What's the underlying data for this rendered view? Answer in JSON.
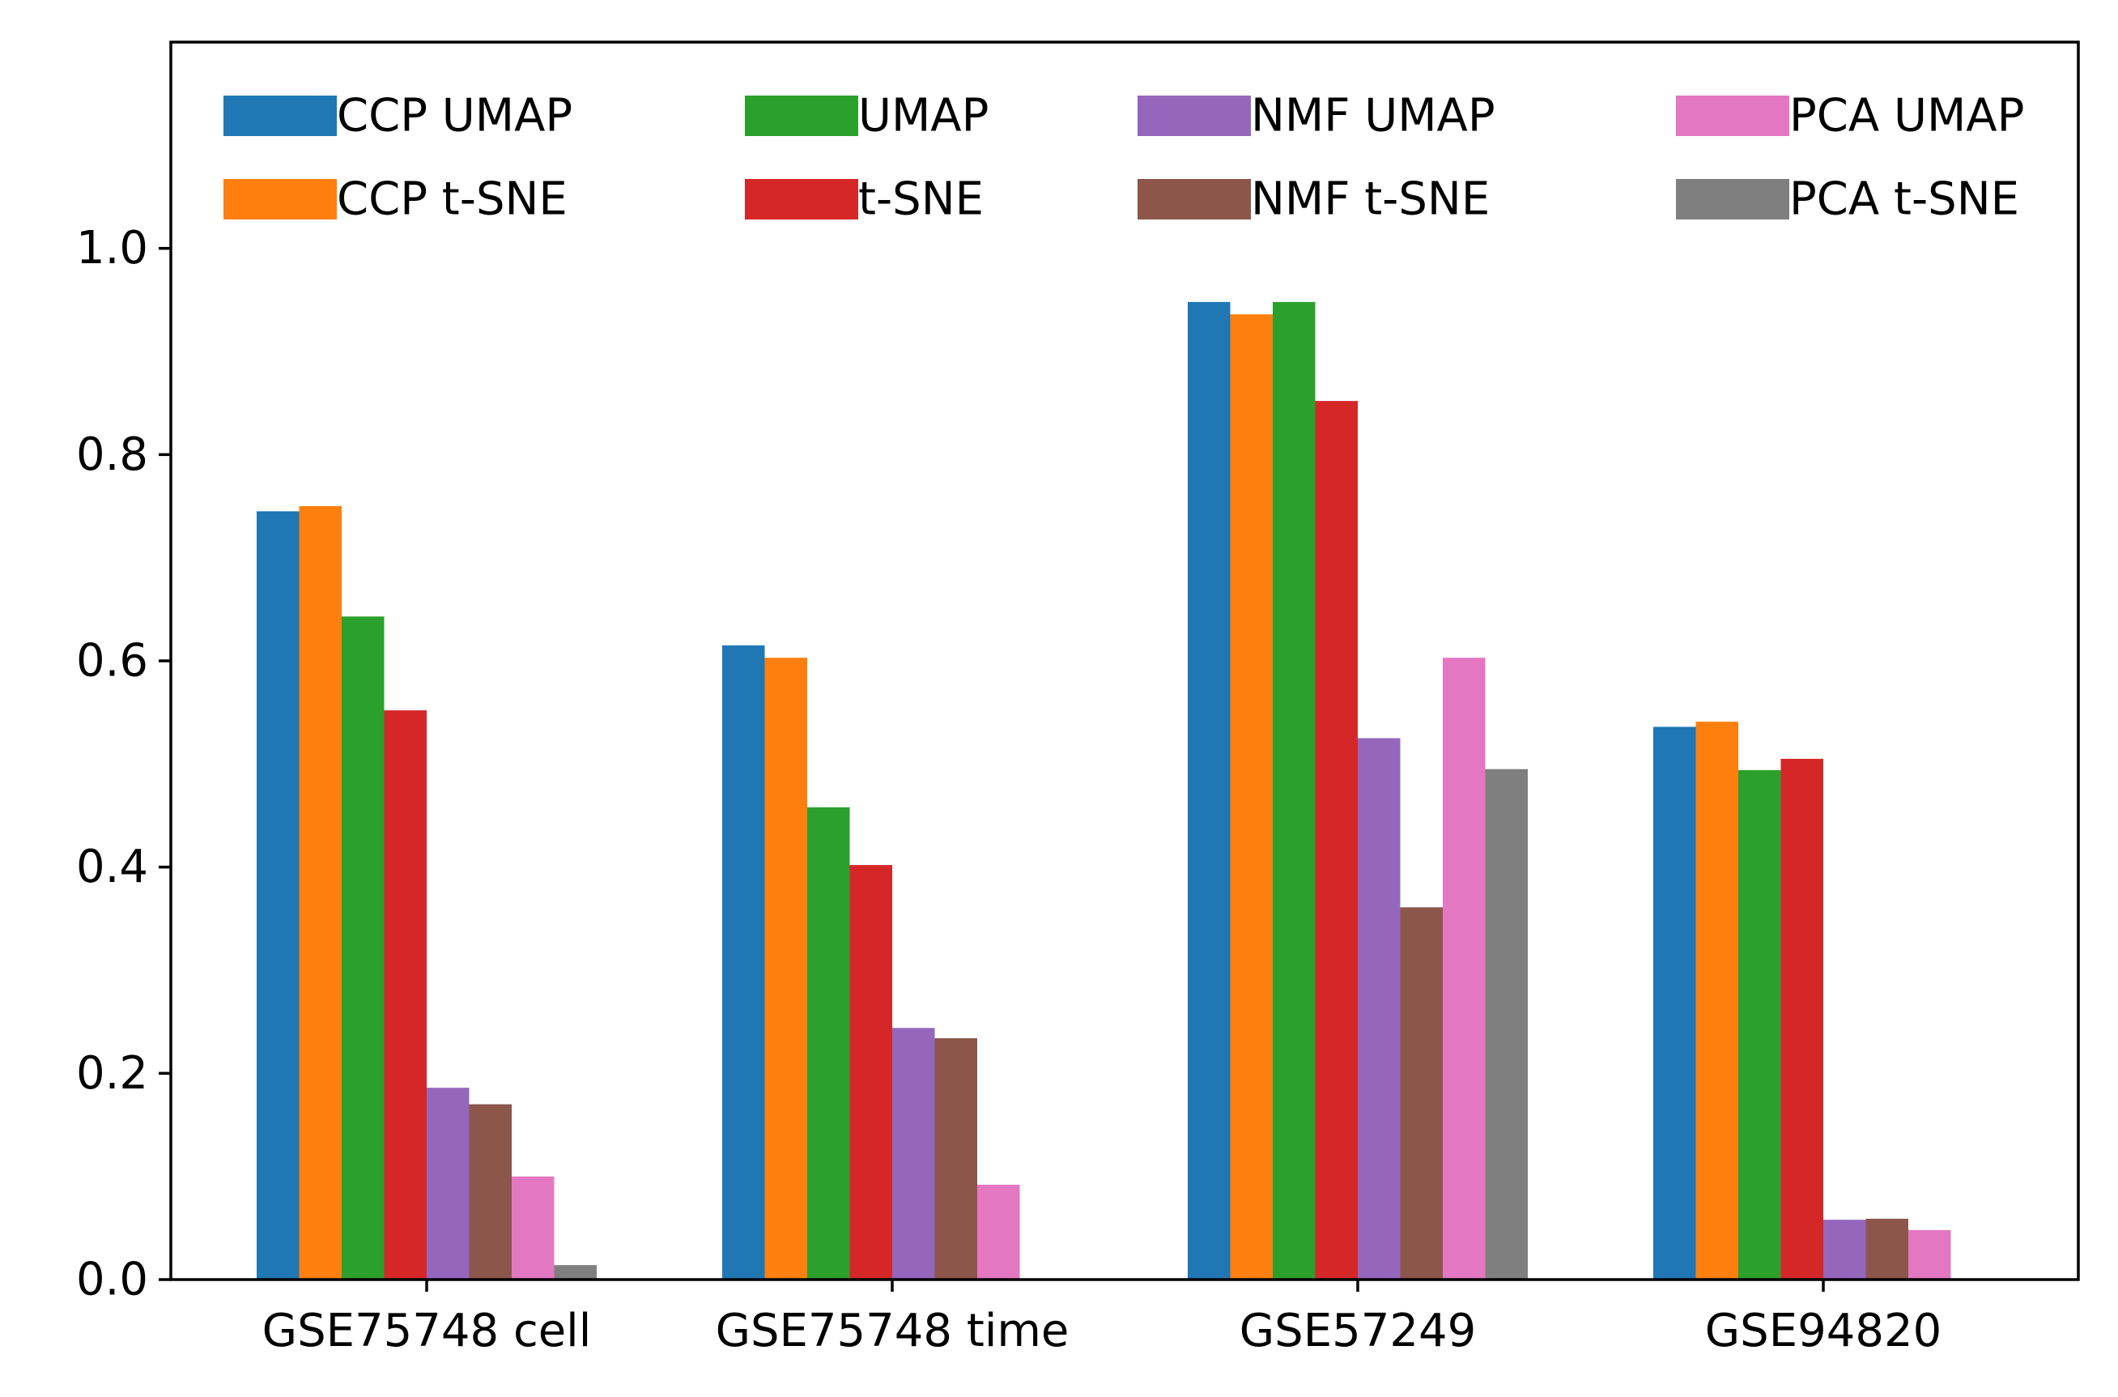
{
  "chart_data": {
    "type": "bar",
    "categories": [
      "GSE75748 cell",
      "GSE75748 time",
      "GSE57249",
      "GSE94820"
    ],
    "series": [
      {
        "name": "CCP UMAP",
        "color": "#1f77b4",
        "values": [
          0.745,
          0.615,
          0.948,
          0.536
        ]
      },
      {
        "name": "CCP t-SNE",
        "color": "#ff7f0e",
        "values": [
          0.75,
          0.603,
          0.936,
          0.541
        ]
      },
      {
        "name": "UMAP",
        "color": "#2ca02c",
        "values": [
          0.643,
          0.458,
          0.948,
          0.494
        ]
      },
      {
        "name": "t-SNE",
        "color": "#d62728",
        "values": [
          0.552,
          0.402,
          0.852,
          0.505
        ]
      },
      {
        "name": "NMF UMAP",
        "color": "#9467bd",
        "values": [
          0.186,
          0.244,
          0.525,
          0.058
        ]
      },
      {
        "name": "NMF t-SNE",
        "color": "#8c564b",
        "values": [
          0.17,
          0.234,
          0.361,
          0.059
        ]
      },
      {
        "name": "PCA UMAP",
        "color": "#e377c2",
        "values": [
          0.1,
          0.092,
          0.603,
          0.048
        ]
      },
      {
        "name": "PCA t-SNE",
        "color": "#7f7f7f",
        "values": [
          0.014,
          0.0,
          0.495,
          0.0
        ]
      }
    ],
    "ylim": [
      0,
      1.2
    ],
    "yticks": [
      "0.0",
      "0.2",
      "0.4",
      "0.6",
      "0.8",
      "1.0"
    ],
    "ytick_values": [
      0,
      0.2,
      0.4,
      0.6,
      0.8,
      1.0
    ],
    "xlabel": "",
    "ylabel": "",
    "title": "",
    "grid": false,
    "legend": {
      "position": "top",
      "columns": 4
    }
  }
}
